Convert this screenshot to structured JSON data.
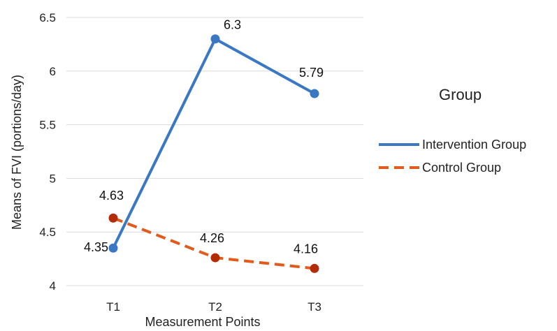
{
  "chart_data": {
    "type": "line",
    "categories": [
      "T1",
      "T2",
      "T3"
    ],
    "xlabel": "Measurement Points",
    "ylabel": "Means of FVI (portions/day)",
    "ylim": [
      4,
      6.5
    ],
    "yticks": [
      "4",
      "4.5",
      "5",
      "5.5",
      "6",
      "6.5"
    ],
    "grid": true,
    "legend": {
      "title": "Group",
      "placement": "right"
    },
    "series": [
      {
        "name": "Intervention Group",
        "values": [
          4.35,
          6.3,
          5.79
        ],
        "labels": [
          "4.35",
          "6.3",
          "5.79"
        ],
        "color": "#3a78c4",
        "line_color": "#3a78c4",
        "style": "solid"
      },
      {
        "name": "Control Group",
        "values": [
          4.63,
          4.26,
          4.16
        ],
        "labels": [
          "4.63",
          "4.26",
          "4.16"
        ],
        "color": "#b22d06",
        "line_color": "#e25a1c",
        "style": "dashed"
      }
    ]
  }
}
